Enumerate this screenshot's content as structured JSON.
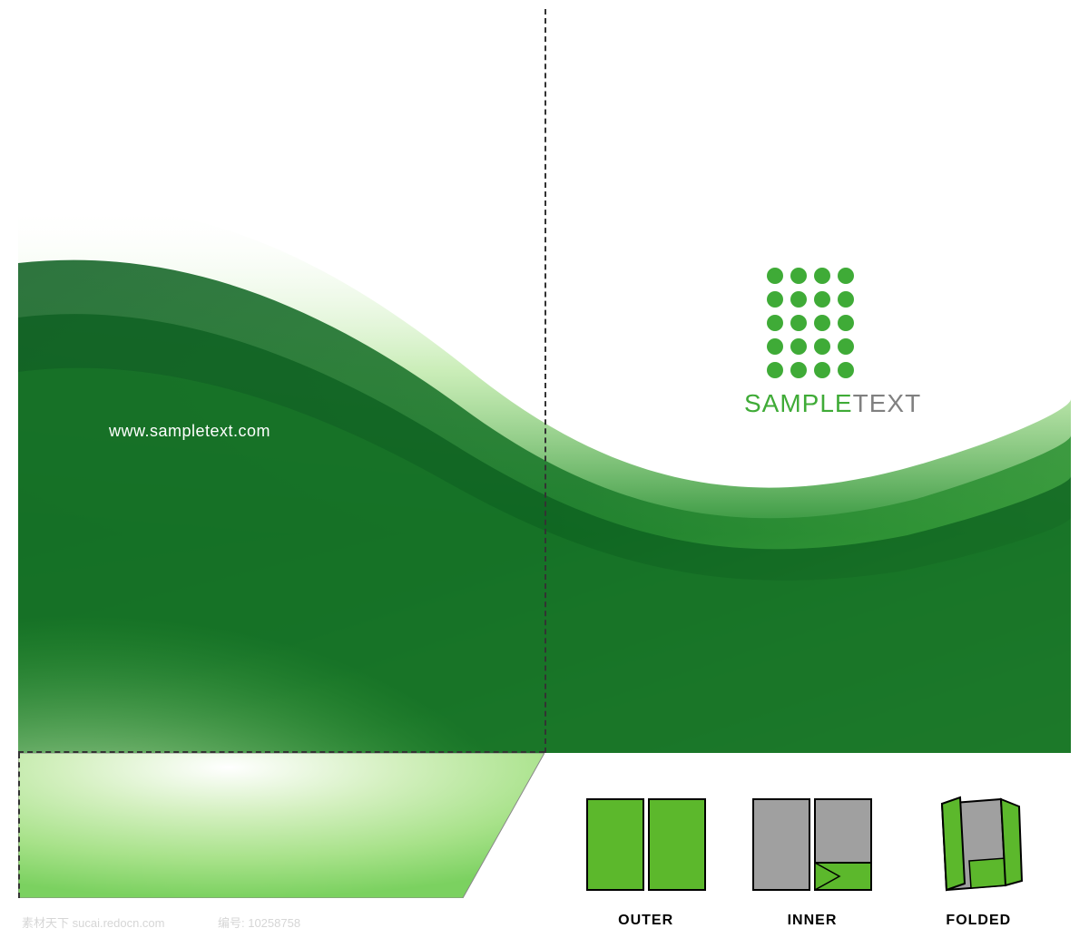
{
  "template": {
    "type": "folder-dieline",
    "background_color": "#ffffff",
    "wave_colors": [
      "#0a5c1e",
      "#1a7a2a",
      "#2d9138",
      "#4fb845",
      "#7bd160",
      "#a8e28a",
      "#d4f0c0",
      "#ffffff"
    ],
    "fold_line_color": "#333333",
    "fold_line_style": "dashed"
  },
  "content": {
    "website_url": "www.sampletext.com",
    "website_url_color": "#ffffff",
    "logo": {
      "sample_text": "SAMPLE",
      "suffix_text": "TEXT",
      "sample_color": "#3fab37",
      "suffix_color": "#808080",
      "dot_color": "#3fab37",
      "dot_rows": 5,
      "dot_cols": 4,
      "dot_size": 18
    }
  },
  "previews": {
    "outer": {
      "label": "OUTER",
      "fill": "#5cb82c",
      "stroke": "#000000"
    },
    "inner": {
      "label": "INNER",
      "fill_bg": "#a0a0a0",
      "fill_pocket": "#5cb82c",
      "stroke": "#000000"
    },
    "folded": {
      "label": "FOLDED",
      "fill": "#5cb82c",
      "fill_inner": "#a0a0a0",
      "stroke": "#000000"
    }
  },
  "watermark": {
    "left_text": "素材天下 sucai.redocn.com",
    "right_text": "编号: 10258758",
    "color": "#d6d6d6"
  }
}
